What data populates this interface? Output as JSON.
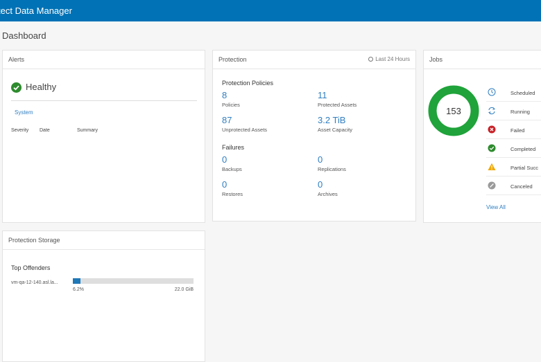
{
  "app": {
    "title": "tect Data Manager"
  },
  "page": {
    "title": "Dashboard"
  },
  "alerts": {
    "header": "Alerts",
    "status": "Healthy",
    "tab": "System",
    "columns": [
      "Severity",
      "Date",
      "Summary"
    ]
  },
  "protection": {
    "header": "Protection",
    "timeframe": "Last 24 Hours",
    "policies_title": "Protection Policies",
    "policies": [
      {
        "value": "8",
        "label": "Policies"
      },
      {
        "value": "11",
        "label": "Protected Assets"
      },
      {
        "value": "87",
        "label": "Unprotected Assets"
      },
      {
        "value": "3.2 TiB",
        "label": "Asset Capacity"
      }
    ],
    "failures_title": "Failures",
    "failures": [
      {
        "value": "0",
        "label": "Backups"
      },
      {
        "value": "0",
        "label": "Replications"
      },
      {
        "value": "0",
        "label": "Restores"
      },
      {
        "value": "0",
        "label": "Archives"
      }
    ]
  },
  "jobs": {
    "header": "Jobs",
    "total": "153",
    "donut_color": "#1fa33a",
    "items": [
      {
        "label": "Scheduled",
        "icon": "clock-icon"
      },
      {
        "label": "Running",
        "icon": "refresh-icon"
      },
      {
        "label": "Failed",
        "icon": "error-icon"
      },
      {
        "label": "Completed",
        "icon": "check-circle-icon"
      },
      {
        "label": "Partial Succ",
        "icon": "warning-icon"
      },
      {
        "label": "Canceled",
        "icon": "cancel-icon"
      }
    ],
    "view_all": "View All"
  },
  "storage": {
    "header": "Protection Storage",
    "top_offenders_title": "Top Offenders",
    "offenders": [
      {
        "name": "vm-qa-12-140.asl.la...",
        "percent_label": "6.2%",
        "percent": 6.2,
        "capacity": "22.0 GiB"
      }
    ]
  }
}
